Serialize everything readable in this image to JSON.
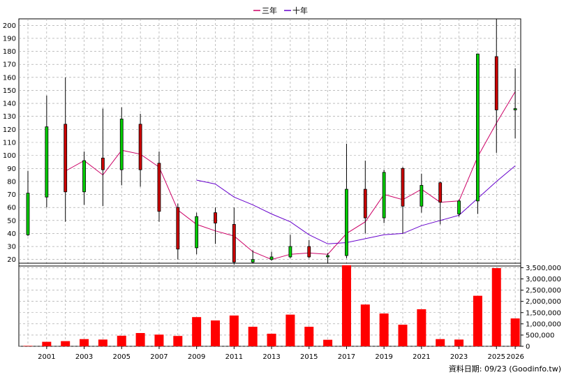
{
  "legend": {
    "ma3_label": "三年",
    "ma10_label": "十年"
  },
  "source_note": "資料日期: 09/23  (Goodinfo.tw)",
  "colors": {
    "up": "#00cc00",
    "down": "#cc0000",
    "volume": "#ff0000",
    "ma3": "#cc0066",
    "ma10": "#6600cc",
    "grid": "#999999"
  },
  "chart_data": [
    {
      "type": "candlestick",
      "title": "",
      "years": [
        2000,
        2001,
        2002,
        2003,
        2004,
        2005,
        2006,
        2007,
        2008,
        2009,
        2010,
        2011,
        2012,
        2013,
        2014,
        2015,
        2016,
        2017,
        2018,
        2019,
        2020,
        2021,
        2022,
        2023,
        2024,
        2025,
        2026
      ],
      "x_tick_labels": [
        "2001",
        "2003",
        "2005",
        "2007",
        "2009",
        "2011",
        "2013",
        "2015",
        "2017",
        "2019",
        "2021",
        "2023",
        "2025",
        "2026"
      ],
      "ylim": [
        15,
        205
      ],
      "y_ticks": [
        20,
        30,
        40,
        50,
        60,
        70,
        80,
        90,
        100,
        110,
        120,
        130,
        140,
        150,
        160,
        170,
        180,
        190,
        200
      ],
      "grid": true,
      "candles": [
        {
          "year": 2000,
          "open": 39,
          "close": 71,
          "high": 88,
          "low": 38
        },
        {
          "year": 2001,
          "open": 68,
          "close": 122,
          "high": 146,
          "low": 60
        },
        {
          "year": 2002,
          "open": 124,
          "close": 72,
          "high": 160,
          "low": 49
        },
        {
          "year": 2003,
          "open": 72,
          "close": 96,
          "high": 103,
          "low": 62
        },
        {
          "year": 2004,
          "open": 98,
          "close": 89,
          "high": 136,
          "low": 61
        },
        {
          "year": 2005,
          "open": 89,
          "close": 128,
          "high": 137,
          "low": 77
        },
        {
          "year": 2006,
          "open": 124,
          "close": 89,
          "high": 132,
          "low": 76
        },
        {
          "year": 2007,
          "open": 94,
          "close": 57,
          "high": 103,
          "low": 49
        },
        {
          "year": 2008,
          "open": 60,
          "close": 28,
          "high": 63,
          "low": 20
        },
        {
          "year": 2009,
          "open": 29,
          "close": 53,
          "high": 56,
          "low": 24
        },
        {
          "year": 2010,
          "open": 56,
          "close": 48,
          "high": 60,
          "low": 32
        },
        {
          "year": 2011,
          "open": 47,
          "close": 18,
          "high": 60,
          "low": 16
        },
        {
          "year": 2012,
          "open": 18,
          "close": 20,
          "high": 27,
          "low": 17
        },
        {
          "year": 2013,
          "open": 20,
          "close": 22,
          "high": 26,
          "low": 19
        },
        {
          "year": 2014,
          "open": 22,
          "close": 30,
          "high": 39,
          "low": 21
        },
        {
          "year": 2015,
          "open": 30,
          "close": 22,
          "high": 35,
          "low": 21
        },
        {
          "year": 2016,
          "open": 22,
          "close": 23,
          "high": 25,
          "low": 17
        },
        {
          "year": 2017,
          "open": 23,
          "close": 74,
          "high": 109,
          "low": 21
        },
        {
          "year": 2018,
          "open": 74,
          "close": 52,
          "high": 96,
          "low": 40
        },
        {
          "year": 2019,
          "open": 52,
          "close": 87,
          "high": 89,
          "low": 48
        },
        {
          "year": 2020,
          "open": 90,
          "close": 61,
          "high": 91,
          "low": 40
        },
        {
          "year": 2021,
          "open": 61,
          "close": 77,
          "high": 86,
          "low": 56
        },
        {
          "year": 2022,
          "open": 79,
          "close": 64,
          "high": 80,
          "low": 47
        },
        {
          "year": 2023,
          "open": 55,
          "close": 65,
          "high": 66,
          "low": 53
        },
        {
          "year": 2024,
          "open": 65,
          "close": 178,
          "high": 178,
          "low": 55
        },
        {
          "year": 2025,
          "open": 176,
          "close": 135,
          "high": 205,
          "low": 102
        },
        {
          "year": 2026,
          "open": 135,
          "close": 136,
          "high": 167,
          "low": 113
        }
      ],
      "series": [
        {
          "name": "三年",
          "years": [
            2002,
            2003,
            2004,
            2005,
            2006,
            2007,
            2008,
            2009,
            2010,
            2011,
            2012,
            2013,
            2014,
            2015,
            2016,
            2017,
            2018,
            2019,
            2020,
            2021,
            2022,
            2023,
            2024,
            2025,
            2026
          ],
          "values": [
            88,
            96,
            85,
            104,
            101,
            91,
            58,
            47,
            42,
            38,
            26,
            20,
            24,
            25,
            24,
            40,
            49,
            70,
            66,
            74,
            64,
            65,
            99,
            125,
            149
          ]
        },
        {
          "name": "十年",
          "years": [
            2009,
            2010,
            2011,
            2012,
            2013,
            2014,
            2015,
            2016,
            2017,
            2018,
            2019,
            2020,
            2021,
            2022,
            2023,
            2024,
            2025,
            2026
          ],
          "values": [
            81,
            78,
            68,
            62,
            55,
            49,
            39,
            32,
            33,
            36,
            39,
            40,
            46,
            50,
            54,
            67,
            80,
            92
          ]
        }
      ]
    },
    {
      "type": "bar",
      "title": "",
      "years": [
        2000,
        2001,
        2002,
        2003,
        2004,
        2005,
        2006,
        2007,
        2008,
        2009,
        2010,
        2011,
        2012,
        2013,
        2014,
        2015,
        2016,
        2017,
        2018,
        2019,
        2020,
        2021,
        2022,
        2023,
        2024,
        2025,
        2026
      ],
      "values": [
        20000,
        200000,
        230000,
        320000,
        300000,
        470000,
        590000,
        520000,
        460000,
        1300000,
        1150000,
        1370000,
        870000,
        560000,
        1410000,
        870000,
        290000,
        3610000,
        1860000,
        1460000,
        960000,
        1650000,
        320000,
        300000,
        2250000,
        3480000,
        1240000
      ],
      "ylim": [
        0,
        3700000
      ],
      "y_tick_labels": [
        "0",
        "500,000",
        "1,000,000",
        "1,500,000",
        "2,000,000",
        "2,500,000",
        "3,000,000",
        "3,500,000"
      ],
      "grid": true
    }
  ]
}
